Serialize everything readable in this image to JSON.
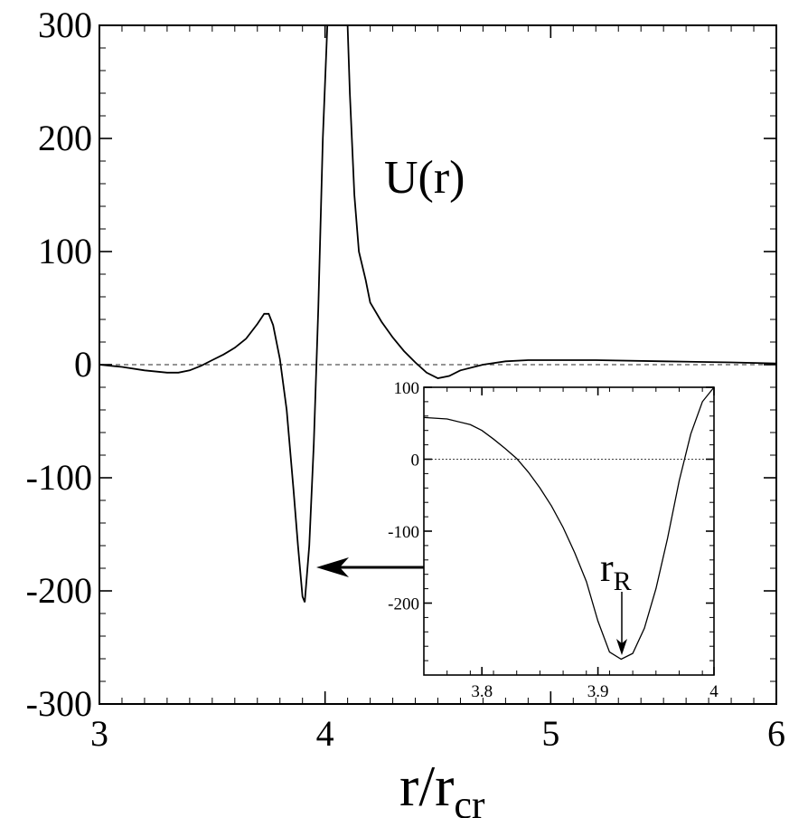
{
  "chart_data": [
    {
      "type": "line",
      "role": "main",
      "xlim": [
        3,
        6
      ],
      "ylim": [
        -300,
        300
      ],
      "x_ticks": [
        3,
        4,
        5,
        6
      ],
      "y_ticks": [
        -300,
        -200,
        -100,
        0,
        100,
        200,
        300
      ],
      "x_tick_labels": [
        "3",
        "4",
        "5",
        "6"
      ],
      "y_tick_labels": [
        "-300",
        "-200",
        "-100",
        "0",
        "100",
        "200",
        "300"
      ],
      "xlabel_main": "r/r",
      "xlabel_sub": "cr",
      "curve_label": "U(r)",
      "zero_line": "dashed",
      "series": [
        {
          "x": [
            3.0,
            3.1,
            3.2,
            3.3,
            3.35,
            3.4,
            3.45,
            3.5,
            3.55,
            3.6,
            3.65,
            3.7,
            3.73,
            3.75,
            3.77,
            3.8,
            3.83,
            3.86,
            3.88,
            3.9,
            3.91,
            3.93,
            3.95,
            3.97,
            3.99,
            4.01,
            4.02,
            4.1,
            4.11,
            4.13,
            4.15,
            4.18,
            4.2,
            4.25,
            4.3,
            4.35,
            4.4,
            4.45,
            4.5,
            4.55,
            4.6,
            4.7,
            4.8,
            4.9,
            5.0,
            5.2,
            5.5,
            5.8,
            6.0
          ],
          "y": [
            0,
            -2,
            -5,
            -7,
            -7,
            -5,
            -1,
            4,
            9,
            15,
            23,
            36,
            45,
            45,
            35,
            5,
            -40,
            -110,
            -160,
            -205,
            -210,
            -160,
            -70,
            50,
            200,
            300,
            300,
            300,
            240,
            150,
            100,
            75,
            55,
            38,
            24,
            12,
            2,
            -7,
            -12,
            -10,
            -5,
            0,
            3,
            4,
            4,
            4,
            3,
            2,
            1
          ]
        }
      ]
    },
    {
      "type": "line",
      "role": "inset",
      "xlim": [
        3.75,
        4.0
      ],
      "ylim": [
        -300,
        100
      ],
      "x_ticks": [
        3.8,
        3.9,
        4.0
      ],
      "y_ticks": [
        -200,
        -100,
        0,
        100
      ],
      "x_tick_labels": [
        "3.8",
        "3.9",
        "4"
      ],
      "y_tick_labels": [
        "-200",
        "-100",
        "0",
        "100"
      ],
      "zero_line": "dotted",
      "annotation_main": "r",
      "annotation_sub": "R",
      "annotation_x": 3.922,
      "series": [
        {
          "x": [
            3.75,
            3.77,
            3.79,
            3.8,
            3.81,
            3.82,
            3.83,
            3.84,
            3.85,
            3.86,
            3.87,
            3.88,
            3.89,
            3.9,
            3.91,
            3.92,
            3.93,
            3.94,
            3.95,
            3.96,
            3.97,
            3.98,
            3.99,
            4.0
          ],
          "y": [
            58,
            56,
            48,
            40,
            28,
            15,
            1,
            -18,
            -40,
            -65,
            -95,
            -130,
            -170,
            -225,
            -268,
            -278,
            -270,
            -235,
            -180,
            -110,
            -30,
            35,
            80,
            100
          ]
        }
      ]
    }
  ]
}
